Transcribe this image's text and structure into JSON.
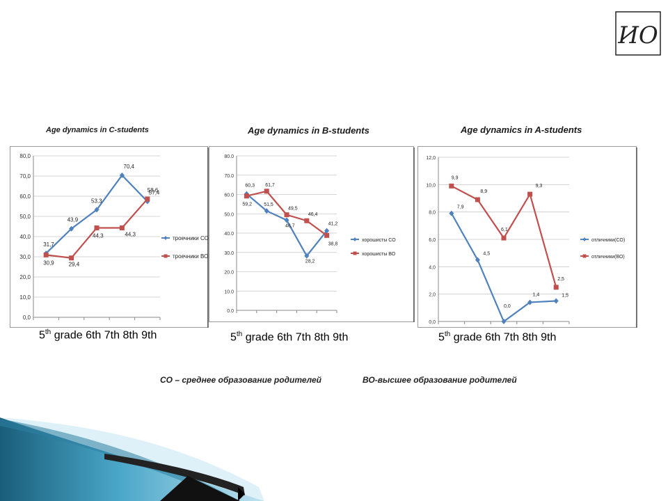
{
  "logo": {
    "text": "ИО"
  },
  "charts": [
    {
      "title": "Age dynamics in C-students",
      "grade_label": {
        "first_num": "5",
        "first_sup": "th",
        "rest": " grade 6th 7th 8th 9th"
      },
      "chart_data": {
        "type": "line",
        "x": [
          "5th",
          "6th",
          "7th",
          "8th",
          "9th"
        ],
        "ylim": [
          0,
          80
        ],
        "yticks": [
          "0,0",
          "10,0",
          "20,0",
          "30,0",
          "40,0",
          "50,0",
          "60,0",
          "70,0",
          "80,0"
        ],
        "series": [
          {
            "name": "троечники СО",
            "values": [
              31.7,
              43.9,
              53.3,
              70.4,
              57.4
            ],
            "labels": [
              "31,7",
              "43,9",
              "53,3",
              "70,4",
              "57,4"
            ],
            "color": "#4F81BD",
            "marker": "diamond"
          },
          {
            "name": "троечники ВО",
            "values": [
              30.9,
              29.4,
              44.3,
              44.3,
              58.6
            ],
            "labels": [
              "30,9",
              "29,4",
              "44,3",
              "44,3",
              "58,6"
            ],
            "color": "#C0504D",
            "marker": "square"
          }
        ]
      }
    },
    {
      "title": "Age dynamics in B-students",
      "grade_label": {
        "first_num": "5",
        "first_sup": "th",
        "rest": " grade 6th 7th 8th 9th"
      },
      "chart_data": {
        "type": "line",
        "x": [
          "5th",
          "6th",
          "7th",
          "8th",
          "9th"
        ],
        "ylim": [
          0,
          80
        ],
        "yticks": [
          "0.0",
          "10.0",
          "20.0",
          "30.0",
          "40.0",
          "50.0",
          "60.0",
          "70.0",
          "80.0"
        ],
        "series": [
          {
            "name": "хорошисты СО",
            "values": [
              60.3,
              51.5,
              46.7,
              28.2,
              41.2
            ],
            "labels": [
              "60,3",
              "51,5",
              "46,7",
              "28,2",
              "41,2"
            ],
            "color": "#4F81BD",
            "marker": "diamond"
          },
          {
            "name": "хорошисты ВО",
            "values": [
              59.2,
              61.7,
              49.5,
              46.4,
              38.8
            ],
            "labels": [
              "59,2",
              "61,7",
              "49,5",
              "46,4",
              "38,8"
            ],
            "color": "#C0504D",
            "marker": "square"
          }
        ]
      }
    },
    {
      "title": "Age dynamics in A-students",
      "grade_label": {
        "first_num": "5",
        "first_sup": "th",
        "rest": " grade 6th 7th 8th 9th"
      },
      "chart_data": {
        "type": "line",
        "x": [
          "5th",
          "6th",
          "7th",
          "8th",
          "9th"
        ],
        "ylim": [
          0,
          12
        ],
        "yticks": [
          "0,0",
          "2,0",
          "4,0",
          "6,0",
          "8,0",
          "10,0",
          "12,0"
        ],
        "series": [
          {
            "name": "отличники(СО)",
            "values": [
              7.9,
              4.5,
              0.0,
              1.4,
              1.5
            ],
            "labels": [
              "7,9",
              "4,5",
              "0,0",
              "1,4",
              "1,5"
            ],
            "color": "#4F81BD",
            "marker": "diamond"
          },
          {
            "name": "отличники(ВО)",
            "values": [
              9.9,
              8.9,
              6.1,
              9.3,
              2.5
            ],
            "labels": [
              "9,9",
              "8,9",
              "6,1",
              "9,3",
              "2,5"
            ],
            "color": "#C0504D",
            "marker": "square"
          }
        ]
      }
    }
  ],
  "footnotes": {
    "co": "СО – среднее образование родителей",
    "vo": "ВО-высшее образование родителей"
  }
}
